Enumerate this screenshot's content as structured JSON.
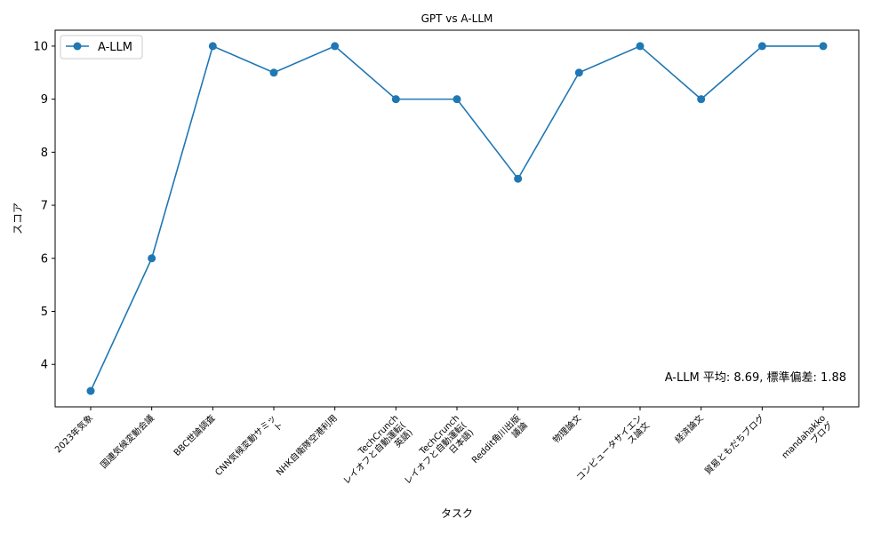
{
  "chart_data": {
    "type": "line",
    "title": "GPT vs A-LLM",
    "xlabel": "タスク",
    "ylabel": "スコア",
    "categories": [
      "2023年気象",
      "国連気候変動会議",
      "BBC世論調査",
      "CNN気候変動サミッ\nト",
      "NHK自衛隊空港利用",
      "TechCrunch\nレイオフと自動運転(\n英語)",
      "TechCrunch\nレイオフと自動運転(\n日本語)",
      "Reddit角川出版\n議論",
      "物理論文",
      "コンピュータサイエン\nス論文",
      "経済論文",
      "貿易ともだちブログ",
      "mandahakko\nブログ"
    ],
    "series": [
      {
        "name": "A-LLM",
        "color": "#1f77b4",
        "marker": "circle",
        "values": [
          3.5,
          6,
          10,
          9.5,
          10,
          9,
          9,
          7.5,
          9.5,
          10,
          9,
          10,
          10
        ]
      }
    ],
    "yticks": [
      4,
      5,
      6,
      7,
      8,
      9,
      10
    ],
    "ylim": [
      3.2,
      10.3
    ],
    "legend_position": "upper-left",
    "grid": false,
    "annotation": "A-LLM 平均: 8.69, 標準偏差: 1.88"
  }
}
